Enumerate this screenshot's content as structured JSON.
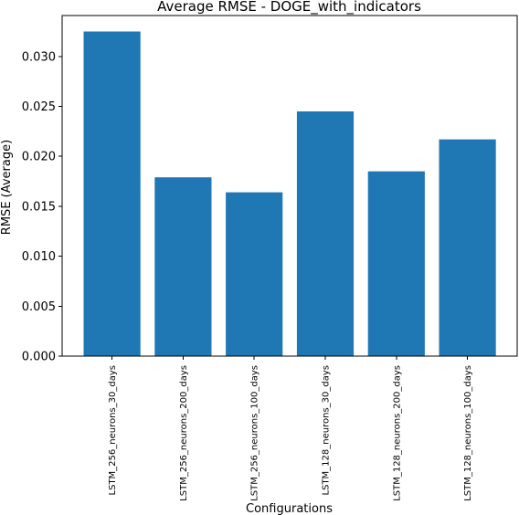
{
  "chart_data": {
    "type": "bar",
    "title": "Average RMSE - DOGE_with_indicators",
    "xlabel": "Configurations",
    "ylabel": "RMSE (Average)",
    "categories": [
      "LSTM_256_neurons_30_days",
      "LSTM_256_neurons_200_days",
      "LSTM_256_neurons_100_days",
      "LSTM_128_neurons_30_days",
      "LSTM_128_neurons_200_days",
      "LSTM_128_neurons_100_days"
    ],
    "values": [
      0.0325,
      0.0179,
      0.0164,
      0.0245,
      0.0185,
      0.0217
    ],
    "yticks": [
      "0.000",
      "0.005",
      "0.010",
      "0.015",
      "0.020",
      "0.025",
      "0.030"
    ],
    "ylim": [
      0,
      0.0341
    ],
    "grid": false,
    "colors": {
      "bar": "#1f77b4",
      "axis": "#000000",
      "background": "#ffffff"
    }
  }
}
